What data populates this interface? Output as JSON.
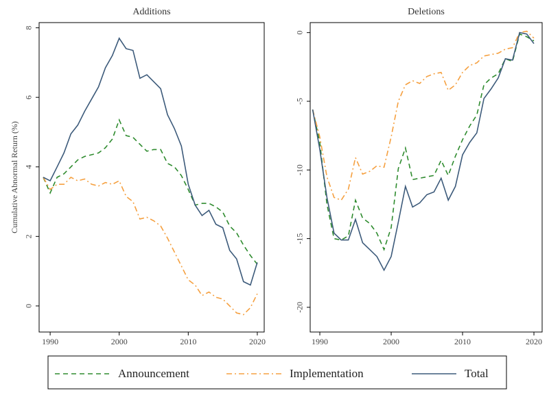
{
  "chart_data": [
    {
      "type": "line",
      "title": "Additions",
      "ylabel": "Cumulative Abnormal Return (%)",
      "x": [
        1989,
        1990,
        1991,
        1992,
        1993,
        1994,
        1995,
        1996,
        1997,
        1998,
        1999,
        2000,
        2001,
        2002,
        2003,
        2004,
        2005,
        2006,
        2007,
        2008,
        2009,
        2010,
        2011,
        2012,
        2013,
        2014,
        2015,
        2016,
        2017,
        2018,
        2019,
        2020
      ],
      "xlim": [
        1988.4,
        2021
      ],
      "xticks": [
        1990,
        2000,
        2010,
        2020
      ],
      "ylim": [
        -0.75,
        8.15
      ],
      "yticks": [
        0,
        2,
        4,
        6,
        8
      ],
      "series": [
        {
          "name": "Announcement",
          "color": "#2e8b2e",
          "linestyle": "dashed",
          "values": [
            3.7,
            3.25,
            3.7,
            3.8,
            4.0,
            4.2,
            4.3,
            4.35,
            4.4,
            4.55,
            4.8,
            5.35,
            4.9,
            4.85,
            4.65,
            4.45,
            4.5,
            4.5,
            4.1,
            4.0,
            3.75,
            3.35,
            2.9,
            2.95,
            2.95,
            2.85,
            2.7,
            2.3,
            2.1,
            1.75,
            1.45,
            1.2
          ]
        },
        {
          "name": "Implementation",
          "color": "#f5a040",
          "linestyle": "dashdot",
          "values": [
            3.7,
            3.35,
            3.5,
            3.5,
            3.7,
            3.6,
            3.65,
            3.5,
            3.45,
            3.55,
            3.5,
            3.6,
            3.15,
            3.0,
            2.5,
            2.55,
            2.45,
            2.3,
            1.95,
            1.55,
            1.15,
            0.75,
            0.6,
            0.3,
            0.4,
            0.25,
            0.2,
            0.0,
            -0.2,
            -0.25,
            -0.05,
            0.35
          ]
        },
        {
          "name": "Total",
          "color": "#3c5a7a",
          "linestyle": "solid",
          "values": [
            3.7,
            3.6,
            4.0,
            4.4,
            4.95,
            5.2,
            5.6,
            5.95,
            6.3,
            6.85,
            7.2,
            7.7,
            7.4,
            7.35,
            6.55,
            6.65,
            6.45,
            6.25,
            5.5,
            5.1,
            4.6,
            3.5,
            2.9,
            2.6,
            2.75,
            2.35,
            2.25,
            1.6,
            1.35,
            0.7,
            0.6,
            1.25
          ]
        }
      ]
    },
    {
      "type": "line",
      "title": "Deletions",
      "x": [
        1989,
        1990,
        1991,
        1992,
        1993,
        1994,
        1995,
        1996,
        1997,
        1998,
        1999,
        2000,
        2001,
        2002,
        2003,
        2004,
        2005,
        2006,
        2007,
        2008,
        2009,
        2010,
        2011,
        2012,
        2013,
        2014,
        2015,
        2016,
        2017,
        2018,
        2019,
        2020
      ],
      "xlim": [
        1988.65,
        2021.15
      ],
      "xticks": [
        1990,
        2000,
        2010,
        2020
      ],
      "ylim": [
        -21.8,
        0.73
      ],
      "yticks": [
        0,
        -5,
        -10,
        -15,
        -20
      ],
      "series": [
        {
          "name": "Announcement",
          "color": "#2e8b2e",
          "linestyle": "dashed",
          "values": [
            -5.6,
            -8.0,
            -12.5,
            -15.0,
            -15.1,
            -14.8,
            -12.2,
            -13.5,
            -13.9,
            -14.6,
            -15.8,
            -14.2,
            -9.9,
            -8.4,
            -10.7,
            -10.6,
            -10.5,
            -10.4,
            -9.3,
            -10.4,
            -9.0,
            -7.8,
            -6.8,
            -6.0,
            -3.8,
            -3.3,
            -3.0,
            -1.9,
            -2.1,
            -0.1,
            -0.3,
            -0.6
          ]
        },
        {
          "name": "Implementation",
          "color": "#f5a040",
          "linestyle": "dashdot",
          "values": [
            -5.6,
            -7.6,
            -10.5,
            -12.0,
            -12.2,
            -11.4,
            -9.1,
            -10.3,
            -10.1,
            -9.7,
            -9.8,
            -7.6,
            -5.0,
            -3.8,
            -3.5,
            -3.7,
            -3.2,
            -3.0,
            -2.9,
            -4.2,
            -3.8,
            -2.9,
            -2.4,
            -2.2,
            -1.7,
            -1.6,
            -1.5,
            -1.2,
            -1.1,
            0.0,
            0.1,
            -0.4
          ]
        },
        {
          "name": "Total",
          "color": "#3c5a7a",
          "linestyle": "solid",
          "values": [
            -5.6,
            -8.5,
            -12.0,
            -14.6,
            -15.1,
            -15.1,
            -13.6,
            -15.3,
            -15.8,
            -16.3,
            -17.3,
            -16.3,
            -13.8,
            -11.2,
            -12.7,
            -12.4,
            -11.8,
            -11.6,
            -10.6,
            -12.2,
            -11.2,
            -8.9,
            -8.0,
            -7.3,
            -4.8,
            -4.1,
            -3.3,
            -1.9,
            -2.0,
            0.0,
            -0.1,
            -0.8
          ]
        }
      ]
    }
  ]
}
